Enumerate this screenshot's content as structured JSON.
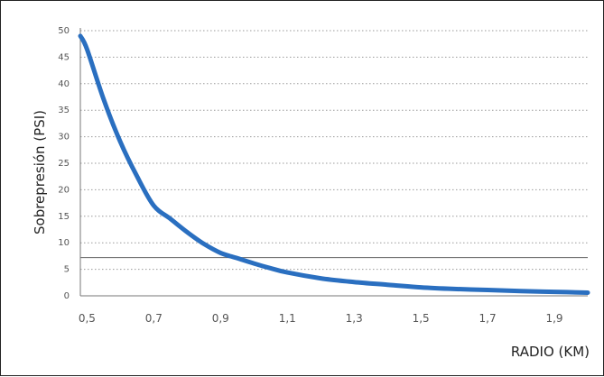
{
  "chart_data": {
    "type": "line",
    "title": "",
    "xlabel": "RADIO (KM)",
    "ylabel": "Sobrepresión (PSI)",
    "xlim": [
      0.48,
      2.0
    ],
    "ylim": [
      0,
      50
    ],
    "yticks": [
      0,
      5,
      10,
      15,
      20,
      25,
      30,
      35,
      40,
      45,
      50
    ],
    "ytick_labels": [
      "0",
      "5",
      "10",
      "15",
      "20",
      "25",
      "30",
      "35",
      "40",
      "45",
      "50"
    ],
    "xticks": [
      0.5,
      0.7,
      0.9,
      1.1,
      1.3,
      1.5,
      1.7,
      1.9
    ],
    "xtick_labels": [
      "0,5",
      "0,7",
      "0,9",
      "1,1",
      "1,3",
      "1,5",
      "1,7",
      "1,9"
    ],
    "grid": "horizontal dotted",
    "reference_line": {
      "y": 7.2,
      "color": "#666666"
    },
    "series": [
      {
        "color": "#2a6fc0",
        "x": [
          0.48,
          0.5,
          0.55,
          0.6,
          0.65,
          0.7,
          0.75,
          0.8,
          0.85,
          0.9,
          0.95,
          1.0,
          1.05,
          1.1,
          1.2,
          1.3,
          1.4,
          1.5,
          1.6,
          1.7,
          1.8,
          1.9,
          2.0
        ],
        "y": [
          49,
          46.5,
          37,
          29,
          22.5,
          17,
          14.5,
          12,
          9.8,
          8.1,
          7.1,
          6.1,
          5.2,
          4.4,
          3.3,
          2.6,
          2.1,
          1.6,
          1.3,
          1.1,
          0.9,
          0.75,
          0.6
        ]
      }
    ]
  }
}
